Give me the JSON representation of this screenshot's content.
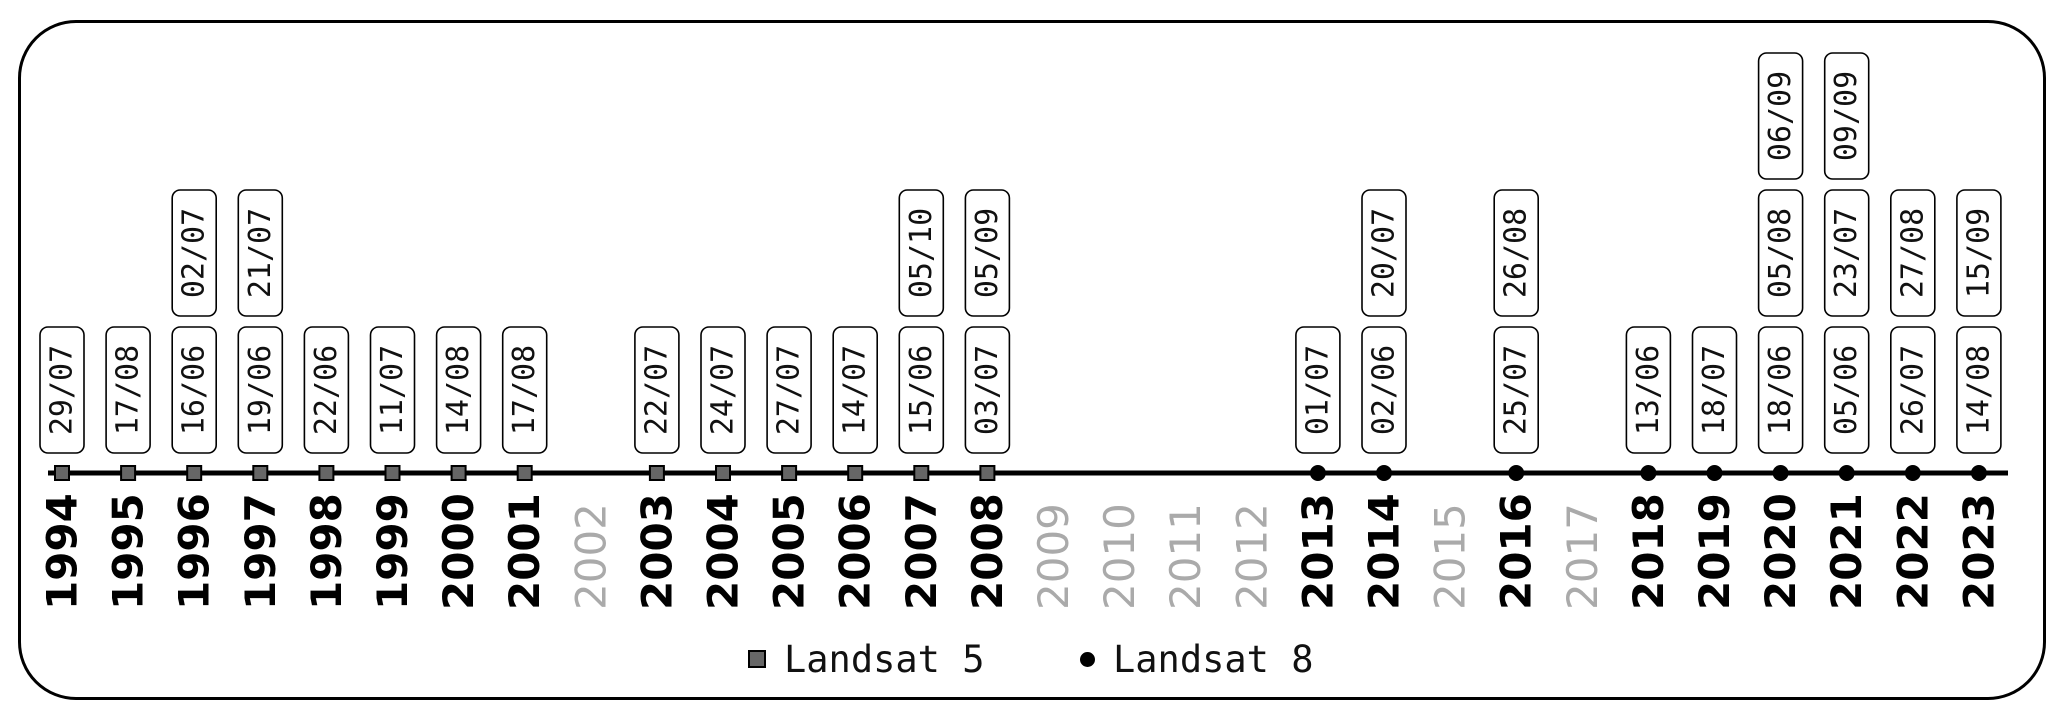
{
  "years": [
    {
      "year": "1994",
      "dates": [
        "29/07"
      ],
      "sensor": "landsat5",
      "active": true
    },
    {
      "year": "1995",
      "dates": [
        "17/08"
      ],
      "sensor": "landsat5",
      "active": true
    },
    {
      "year": "1996",
      "dates": [
        "16/06",
        "02/07"
      ],
      "sensor": "landsat5",
      "active": true
    },
    {
      "year": "1997",
      "dates": [
        "19/06",
        "21/07"
      ],
      "sensor": "landsat5",
      "active": true
    },
    {
      "year": "1998",
      "dates": [
        "22/06"
      ],
      "sensor": "landsat5",
      "active": true
    },
    {
      "year": "1999",
      "dates": [
        "11/07"
      ],
      "sensor": "landsat5",
      "active": true
    },
    {
      "year": "2000",
      "dates": [
        "14/08"
      ],
      "sensor": "landsat5",
      "active": true
    },
    {
      "year": "2001",
      "dates": [
        "17/08"
      ],
      "sensor": "landsat5",
      "active": true
    },
    {
      "year": "2002",
      "dates": [],
      "sensor": "none",
      "active": false
    },
    {
      "year": "2003",
      "dates": [
        "22/07"
      ],
      "sensor": "landsat5",
      "active": true
    },
    {
      "year": "2004",
      "dates": [
        "24/07"
      ],
      "sensor": "landsat5",
      "active": true
    },
    {
      "year": "2005",
      "dates": [
        "27/07"
      ],
      "sensor": "landsat5",
      "active": true
    },
    {
      "year": "2006",
      "dates": [
        "14/07"
      ],
      "sensor": "landsat5",
      "active": true
    },
    {
      "year": "2007",
      "dates": [
        "15/06",
        "05/10"
      ],
      "sensor": "landsat5",
      "active": true
    },
    {
      "year": "2008",
      "dates": [
        "03/07",
        "05/09"
      ],
      "sensor": "landsat5",
      "active": true
    },
    {
      "year": "2009",
      "dates": [],
      "sensor": "none",
      "active": false
    },
    {
      "year": "2010",
      "dates": [],
      "sensor": "none",
      "active": false
    },
    {
      "year": "2011",
      "dates": [],
      "sensor": "none",
      "active": false
    },
    {
      "year": "2012",
      "dates": [],
      "sensor": "none",
      "active": false
    },
    {
      "year": "2013",
      "dates": [
        "01/07"
      ],
      "sensor": "landsat8",
      "active": true
    },
    {
      "year": "2014",
      "dates": [
        "02/06",
        "20/07"
      ],
      "sensor": "landsat8",
      "active": true
    },
    {
      "year": "2015",
      "dates": [],
      "sensor": "none",
      "active": false
    },
    {
      "year": "2016",
      "dates": [
        "25/07",
        "26/08"
      ],
      "sensor": "landsat8",
      "active": true
    },
    {
      "year": "2017",
      "dates": [],
      "sensor": "none",
      "active": false
    },
    {
      "year": "2018",
      "dates": [
        "13/06"
      ],
      "sensor": "landsat8",
      "active": true
    },
    {
      "year": "2019",
      "dates": [
        "18/07"
      ],
      "sensor": "landsat8",
      "active": true
    },
    {
      "year": "2020",
      "dates": [
        "18/06",
        "05/08",
        "06/09"
      ],
      "sensor": "landsat8",
      "active": true
    },
    {
      "year": "2021",
      "dates": [
        "05/06",
        "23/07",
        "09/09"
      ],
      "sensor": "landsat8",
      "active": true
    },
    {
      "year": "2022",
      "dates": [
        "26/07",
        "27/08"
      ],
      "sensor": "landsat8",
      "active": true
    },
    {
      "year": "2023",
      "dates": [
        "14/08",
        "15/09"
      ],
      "sensor": "landsat8",
      "active": true
    }
  ],
  "legend": {
    "landsat5": "Landsat 5",
    "landsat8": "Landsat 8"
  },
  "colors": {
    "axis": "#000000",
    "active_year": "#000000",
    "inactive_year": "#aaaaaa",
    "landsat5_marker": "#666666",
    "landsat8_marker": "#000000"
  }
}
